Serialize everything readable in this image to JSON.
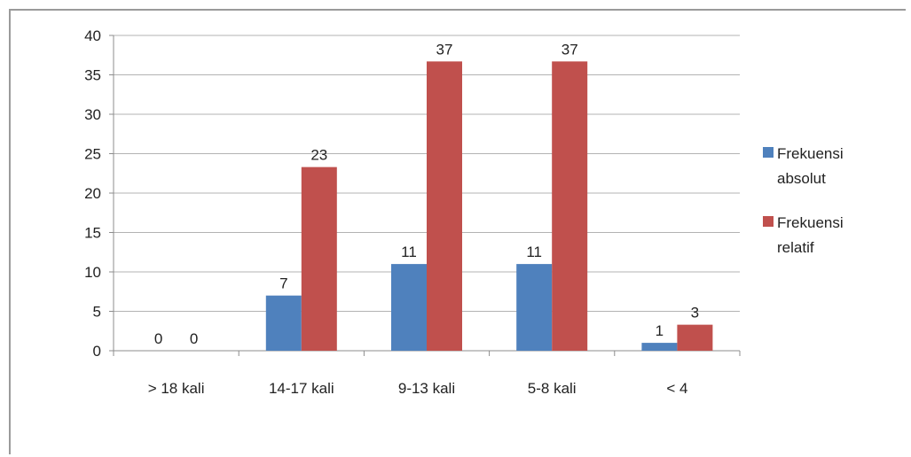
{
  "chart_data": {
    "type": "bar",
    "title": "",
    "xlabel": "",
    "ylabel": "",
    "categories": [
      "> 18 kali",
      "14-17 kali",
      "9-13 kali",
      "5-8 kali",
      "< 4"
    ],
    "series": [
      {
        "name": "Frekuensi absolut",
        "values": [
          0,
          7,
          11,
          11,
          1
        ],
        "labels": [
          "0",
          "7",
          "11",
          "11",
          "1"
        ],
        "color": "#4f81bd"
      },
      {
        "name": "Frekuensi relatif",
        "values": [
          0,
          23.3,
          36.7,
          36.7,
          3.3
        ],
        "labels": [
          "0",
          "23",
          "37",
          "37",
          "3"
        ],
        "color": "#c0504d"
      }
    ],
    "ylim": [
      0,
      40
    ],
    "yticks": [
      0,
      5,
      10,
      15,
      20,
      25,
      30,
      35,
      40
    ],
    "grid": true,
    "legend_position": "right"
  }
}
